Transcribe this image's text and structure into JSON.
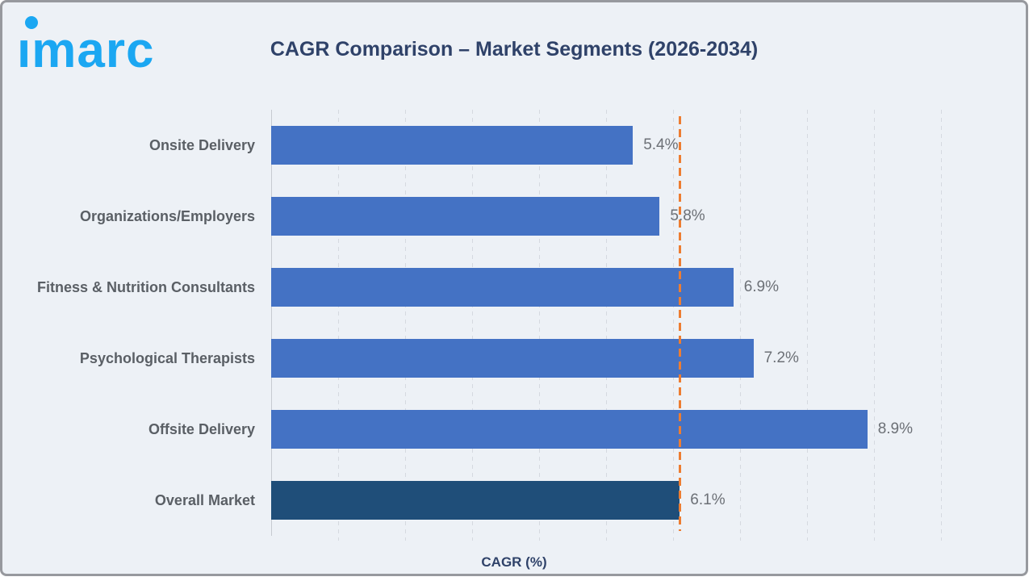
{
  "header": {
    "logo_text": "imarc",
    "title": "CAGR Comparison – Market Segments (2026-2034)"
  },
  "chart_data": {
    "type": "bar",
    "orientation": "horizontal",
    "title": "CAGR Comparison – Market Segments (2026-2034)",
    "categories": [
      "Onsite Delivery",
      "Organizations/Employers",
      "Fitness & Nutrition Consultants",
      "Psychological Therapists",
      "Offsite Delivery",
      "Overall Market"
    ],
    "values": [
      5.4,
      5.8,
      6.9,
      7.2,
      8.9,
      6.1
    ],
    "value_labels": [
      "5.4%",
      "5.8%",
      "6.9%",
      "7.2%",
      "8.9%",
      "6.1%"
    ],
    "xlabel": "CAGR (%)",
    "ylabel": "",
    "xlim": [
      0,
      10
    ],
    "gridline_step": 1,
    "grid": "vertical-dashed",
    "legend": "none",
    "reference_line": {
      "value": 6.1,
      "style": "dashed"
    }
  },
  "colors": {
    "background": "#EDF1F6",
    "bar": "#4472C4",
    "highlight_bar": "#1F4E79",
    "highlight_index": 5,
    "reference_line": "#ED7D31",
    "title": "#2F4269",
    "category_label": "#5A5F65",
    "value_label": "#6C7076",
    "logo": "#1BA7F2",
    "gridline": "#D5D9E0"
  }
}
